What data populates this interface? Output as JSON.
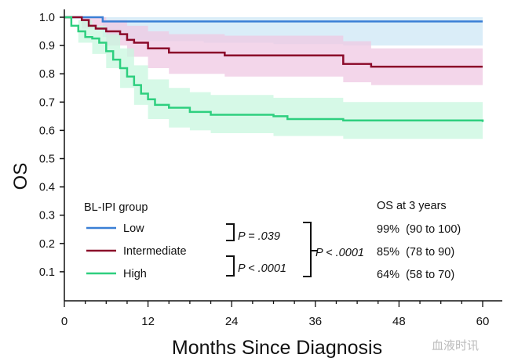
{
  "chart_data": {
    "type": "line",
    "subtype": "kaplan-meier",
    "xlabel": "Months Since Diagnosis",
    "ylabel": "OS",
    "xlim": [
      0,
      61
    ],
    "ylim": [
      0,
      1.0
    ],
    "xticks": [
      0,
      12,
      24,
      36,
      48,
      60
    ],
    "yticks": [
      0.1,
      0.2,
      0.3,
      0.4,
      0.5,
      0.6,
      0.7,
      0.8,
      0.9,
      1.0
    ],
    "ytick_labels": [
      "0.1",
      "0.2",
      "0.3",
      "0.4",
      "0.5",
      "0.6",
      "0.7",
      "0.8",
      "0.9",
      "1.0"
    ],
    "legend_title": "BL-IPI group",
    "series": [
      {
        "name": "Low",
        "color": "#3a7fd5",
        "band": "#d6ebf7",
        "x": [
          0,
          5.5,
          5.5,
          60
        ],
        "y": [
          1.0,
          1.0,
          0.985,
          0.985
        ],
        "ci_x": [
          5.5,
          8,
          12,
          20,
          30,
          40,
          50,
          60
        ],
        "ci_upper": [
          1.0,
          1.0,
          1.0,
          1.0,
          1.0,
          1.0,
          1.0,
          1.0
        ],
        "ci_lower": [
          0.93,
          0.92,
          0.915,
          0.91,
          0.905,
          0.9,
          0.9,
          0.9
        ]
      },
      {
        "name": "Intermediate",
        "color": "#8b0a2a",
        "band": "#efc8e3",
        "x": [
          0,
          2.5,
          3.5,
          4.5,
          6,
          8,
          9,
          10,
          12,
          15,
          23,
          40,
          44,
          60
        ],
        "y": [
          1.0,
          0.99,
          0.97,
          0.96,
          0.95,
          0.94,
          0.92,
          0.91,
          0.89,
          0.875,
          0.865,
          0.835,
          0.825,
          0.825
        ],
        "ci_x": [
          2.5,
          6,
          9,
          12,
          15,
          23,
          40,
          44,
          60
        ],
        "ci_upper": [
          1.0,
          0.99,
          0.97,
          0.95,
          0.94,
          0.935,
          0.915,
          0.89,
          0.88
        ],
        "ci_lower": [
          0.96,
          0.9,
          0.86,
          0.82,
          0.8,
          0.79,
          0.77,
          0.76,
          0.755
        ]
      },
      {
        "name": "High",
        "color": "#2ecf7f",
        "band": "#c8f7df",
        "x": [
          0,
          1,
          2,
          3,
          4,
          5,
          6,
          7,
          8,
          9,
          10,
          11,
          12,
          13,
          15,
          18,
          21,
          30,
          32,
          40,
          60
        ],
        "y": [
          1.0,
          0.97,
          0.95,
          0.93,
          0.925,
          0.91,
          0.88,
          0.85,
          0.82,
          0.79,
          0.76,
          0.73,
          0.71,
          0.69,
          0.68,
          0.665,
          0.655,
          0.65,
          0.64,
          0.635,
          0.63
        ],
        "ci_x": [
          0,
          2,
          4,
          6,
          8,
          10,
          12,
          15,
          18,
          21,
          30,
          40,
          60
        ],
        "ci_upper": [
          1.0,
          0.99,
          0.97,
          0.94,
          0.89,
          0.83,
          0.78,
          0.75,
          0.735,
          0.725,
          0.715,
          0.7,
          0.69
        ],
        "ci_lower": [
          1.0,
          0.91,
          0.87,
          0.82,
          0.75,
          0.69,
          0.64,
          0.61,
          0.6,
          0.59,
          0.58,
          0.57,
          0.565
        ]
      }
    ],
    "annotations": {
      "p1": "P = .039",
      "p2": "P < .0001",
      "p3": "P < .0001",
      "os_title": "OS at 3 years",
      "os_values": [
        "99%  (90 to 100)",
        "85%  (78 to 90)",
        "64%  (58 to 70)"
      ]
    },
    "watermark": "血液时讯"
  }
}
